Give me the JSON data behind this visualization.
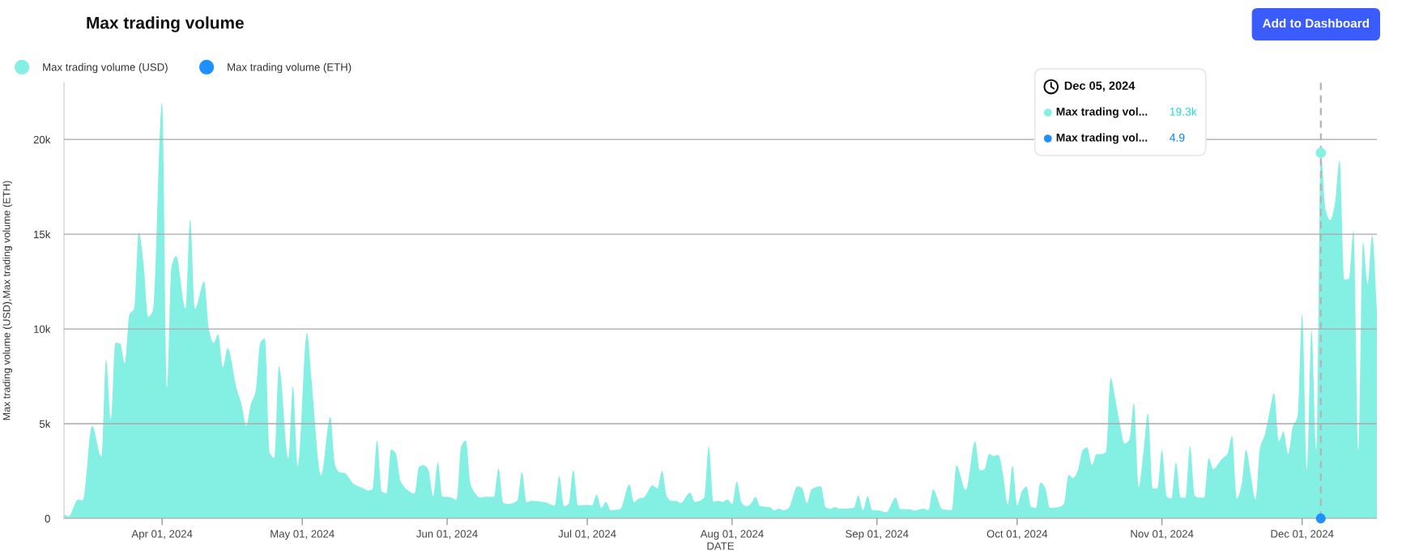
{
  "chart_data": {
    "type": "area",
    "title": "Max trading volume",
    "xlabel": "DATE",
    "ylabel": "Max trading volume (USD),Max trading volume (ETH)",
    "x": [
      "2024-03-11",
      "2024-03-12",
      "2024-03-14",
      "2024-03-15",
      "2024-03-17",
      "2024-03-19",
      "2024-03-20",
      "2024-03-21",
      "2024-03-22",
      "2024-03-23",
      "2024-03-24",
      "2024-03-25",
      "2024-03-26",
      "2024-03-27",
      "2024-03-28",
      "2024-03-29",
      "2024-03-30",
      "2024-04-01",
      "2024-04-02",
      "2024-04-03",
      "2024-04-04",
      "2024-04-06",
      "2024-04-07",
      "2024-04-08",
      "2024-04-10",
      "2024-04-11",
      "2024-04-12",
      "2024-04-13",
      "2024-04-14",
      "2024-04-15",
      "2024-04-17",
      "2024-04-18",
      "2024-04-19",
      "2024-04-20",
      "2024-04-21",
      "2024-04-22",
      "2024-04-23",
      "2024-04-24",
      "2024-04-25",
      "2024-04-26",
      "2024-04-28",
      "2024-04-29",
      "2024-04-30",
      "2024-05-02",
      "2024-05-03",
      "2024-05-05",
      "2024-05-07",
      "2024-05-08",
      "2024-05-09",
      "2024-05-10",
      "2024-05-12",
      "2024-05-14",
      "2024-05-15",
      "2024-05-16",
      "2024-05-17",
      "2024-05-18",
      "2024-05-19",
      "2024-05-20",
      "2024-05-21",
      "2024-05-22",
      "2024-05-24",
      "2024-05-25",
      "2024-05-26",
      "2024-05-27",
      "2024-05-28",
      "2024-05-29",
      "2024-05-30",
      "2024-05-31",
      "2024-06-01",
      "2024-06-02",
      "2024-06-03",
      "2024-06-04",
      "2024-06-05",
      "2024-06-06",
      "2024-06-07",
      "2024-06-08",
      "2024-06-09",
      "2024-06-11",
      "2024-06-12",
      "2024-06-13",
      "2024-06-14",
      "2024-06-16",
      "2024-06-17",
      "2024-06-18",
      "2024-06-19",
      "2024-06-22",
      "2024-06-24",
      "2024-06-25",
      "2024-06-26",
      "2024-06-27",
      "2024-06-28",
      "2024-06-29",
      "2024-07-01",
      "2024-07-02",
      "2024-07-03",
      "2024-07-04",
      "2024-07-05",
      "2024-07-06",
      "2024-07-08",
      "2024-07-10",
      "2024-07-11",
      "2024-07-12",
      "2024-07-13",
      "2024-07-15",
      "2024-07-16",
      "2024-07-17",
      "2024-07-18",
      "2024-07-19",
      "2024-07-20",
      "2024-07-21",
      "2024-07-23",
      "2024-07-24",
      "2024-07-26",
      "2024-07-27",
      "2024-07-28",
      "2024-07-29",
      "2024-07-30",
      "2024-07-31",
      "2024-08-01",
      "2024-08-02",
      "2024-08-03",
      "2024-08-04",
      "2024-08-05",
      "2024-08-06",
      "2024-08-07",
      "2024-08-09",
      "2024-08-10",
      "2024-08-11",
      "2024-08-12",
      "2024-08-13",
      "2024-08-15",
      "2024-08-16",
      "2024-08-17",
      "2024-08-18",
      "2024-08-20",
      "2024-08-21",
      "2024-08-22",
      "2024-08-23",
      "2024-08-24",
      "2024-08-27",
      "2024-08-28",
      "2024-08-29",
      "2024-08-30",
      "2024-08-31",
      "2024-09-01",
      "2024-09-03",
      "2024-09-05",
      "2024-09-06",
      "2024-09-08",
      "2024-09-09",
      "2024-09-11",
      "2024-09-12",
      "2024-09-13",
      "2024-09-15",
      "2024-09-17",
      "2024-09-18",
      "2024-09-20",
      "2024-09-22",
      "2024-09-23",
      "2024-09-24",
      "2024-09-25",
      "2024-09-26",
      "2024-09-27",
      "2024-09-28",
      "2024-09-29",
      "2024-09-30",
      "2024-10-01",
      "2024-10-02",
      "2024-10-03",
      "2024-10-04",
      "2024-10-05",
      "2024-10-06",
      "2024-10-07",
      "2024-10-08",
      "2024-10-10",
      "2024-10-11",
      "2024-10-12",
      "2024-10-13",
      "2024-10-14",
      "2024-10-15",
      "2024-10-16",
      "2024-10-17",
      "2024-10-18",
      "2024-10-19",
      "2024-10-20",
      "2024-10-21",
      "2024-10-22",
      "2024-10-23",
      "2024-10-24",
      "2024-10-25",
      "2024-10-26",
      "2024-10-27",
      "2024-10-28",
      "2024-10-29",
      "2024-10-30",
      "2024-10-31",
      "2024-11-01",
      "2024-11-02",
      "2024-11-03",
      "2024-11-04",
      "2024-11-05",
      "2024-11-06",
      "2024-11-07",
      "2024-11-08",
      "2024-11-09",
      "2024-11-10",
      "2024-11-11",
      "2024-11-12",
      "2024-11-13",
      "2024-11-14",
      "2024-11-15",
      "2024-11-16",
      "2024-11-17",
      "2024-11-18",
      "2024-11-19",
      "2024-11-20",
      "2024-11-21",
      "2024-11-22",
      "2024-11-23",
      "2024-11-24",
      "2024-11-25",
      "2024-11-26",
      "2024-11-27",
      "2024-11-28",
      "2024-11-29",
      "2024-11-30",
      "2024-12-01",
      "2024-12-02",
      "2024-12-03",
      "2024-12-04",
      "2024-12-05",
      "2024-12-06",
      "2024-12-07",
      "2024-12-08",
      "2024-12-09",
      "2024-12-10",
      "2024-12-11",
      "2024-12-12",
      "2024-12-13",
      "2024-12-14",
      "2024-12-15",
      "2024-12-16",
      "2024-12-17"
    ],
    "series": [
      {
        "name": "Max trading volume (USD)",
        "color": "#84efe3",
        "values": [
          230,
          120,
          1000,
          960,
          4890,
          3250,
          8400,
          5200,
          9270,
          9240,
          8200,
          10760,
          11070,
          15100,
          13500,
          10640,
          10950,
          22000,
          6870,
          13300,
          13850,
          11070,
          15800,
          11070,
          12500,
          10000,
          9270,
          9730,
          7980,
          9000,
          6800,
          6030,
          4890,
          6030,
          6700,
          9270,
          9500,
          3500,
          3200,
          8050,
          3160,
          7000,
          2750,
          9800,
          7250,
          2290,
          5370,
          2820,
          2440,
          2400,
          1830,
          1600,
          1480,
          1540,
          4120,
          1420,
          1340,
          3630,
          3460,
          2000,
          1420,
          1310,
          2730,
          2810,
          2570,
          1180,
          2970,
          1140,
          1140,
          1100,
          980,
          3800,
          4120,
          1830,
          1340,
          1100,
          1140,
          1140,
          2650,
          820,
          770,
          930,
          2450,
          850,
          930,
          850,
          690,
          2240,
          650,
          770,
          2570,
          690,
          720,
          690,
          1260,
          560,
          880,
          440,
          490,
          1800,
          850,
          1050,
          1100,
          1750,
          1590,
          2520,
          1180,
          930,
          930,
          820,
          1370,
          880,
          1100,
          3820,
          880,
          930,
          880,
          1000,
          770,
          1960,
          850,
          650,
          770,
          1140,
          650,
          600,
          440,
          520,
          440,
          520,
          1700,
          1590,
          820,
          1540,
          1700,
          600,
          520,
          600,
          520,
          560,
          1210,
          440,
          1180,
          440,
          440,
          330,
          1100,
          490,
          490,
          420,
          520,
          440,
          1540,
          490,
          450,
          2800,
          1500,
          4070,
          2540,
          2600,
          3400,
          3300,
          3350,
          2300,
          720,
          2790,
          690,
          1420,
          1690,
          610,
          560,
          1900,
          1630,
          560,
          610,
          770,
          2300,
          2140,
          2540,
          3590,
          3750,
          2820,
          3400,
          3400,
          3510,
          7420,
          6330,
          4960,
          3950,
          4150,
          6100,
          1660,
          3430,
          5560,
          1580,
          1580,
          3620,
          1180,
          1050,
          2950,
          1100,
          1100,
          3830,
          1210,
          1100,
          1100,
          3190,
          2600,
          2870,
          3190,
          3400,
          4360,
          1050,
          1740,
          3620,
          2300,
          1010,
          3750,
          4430,
          5600,
          6620,
          4070,
          4590,
          3400,
          4850,
          5360,
          10800,
          2540,
          9950,
          3620,
          19300,
          16300,
          15750,
          16600,
          18900,
          12600,
          12650,
          15200,
          3560,
          14600,
          12370,
          14950,
          11000
        ]
      },
      {
        "name": "Max trading volume (ETH)",
        "type": "scatter",
        "color": "#1e90ff",
        "x": [
          "2024-12-05"
        ],
        "values": [
          4.9
        ]
      }
    ],
    "xlim": [
      "2024-03-11",
      "2024-12-17"
    ],
    "xticks": [
      {
        "value": "2024-04-01",
        "label": "Apr 01, 2024"
      },
      {
        "value": "2024-05-01",
        "label": "May 01, 2024"
      },
      {
        "value": "2024-06-01",
        "label": "Jun 01, 2024"
      },
      {
        "value": "2024-07-01",
        "label": "Jul 01, 2024"
      },
      {
        "value": "2024-08-01",
        "label": "Aug 01, 2024"
      },
      {
        "value": "2024-09-01",
        "label": "Sep 01, 2024"
      },
      {
        "value": "2024-10-01",
        "label": "Oct 01, 2024"
      },
      {
        "value": "2024-11-01",
        "label": "Nov 01, 2024"
      },
      {
        "value": "2024-12-01",
        "label": "Dec 01, 2024"
      }
    ],
    "ylim": [
      0,
      23000
    ],
    "yticks": [
      0,
      {
        "value": 5000,
        "label": "5k"
      },
      {
        "value": 10000,
        "label": "10k"
      },
      {
        "value": 15000,
        "label": "15k"
      },
      {
        "value": 20000,
        "label": "20k"
      }
    ],
    "grid": "y",
    "legend": "top left",
    "ref_lines": [
      {
        "axis": "x",
        "value": "2024-12-05",
        "color": "#b3b3b3",
        "line_style": "dashed"
      }
    ],
    "annotations": [
      "Add to Dashboard",
      "Dec 05, 2024",
      "Max trading vol...",
      "19.3k",
      "Max trading vol...",
      "4.9"
    ]
  }
}
